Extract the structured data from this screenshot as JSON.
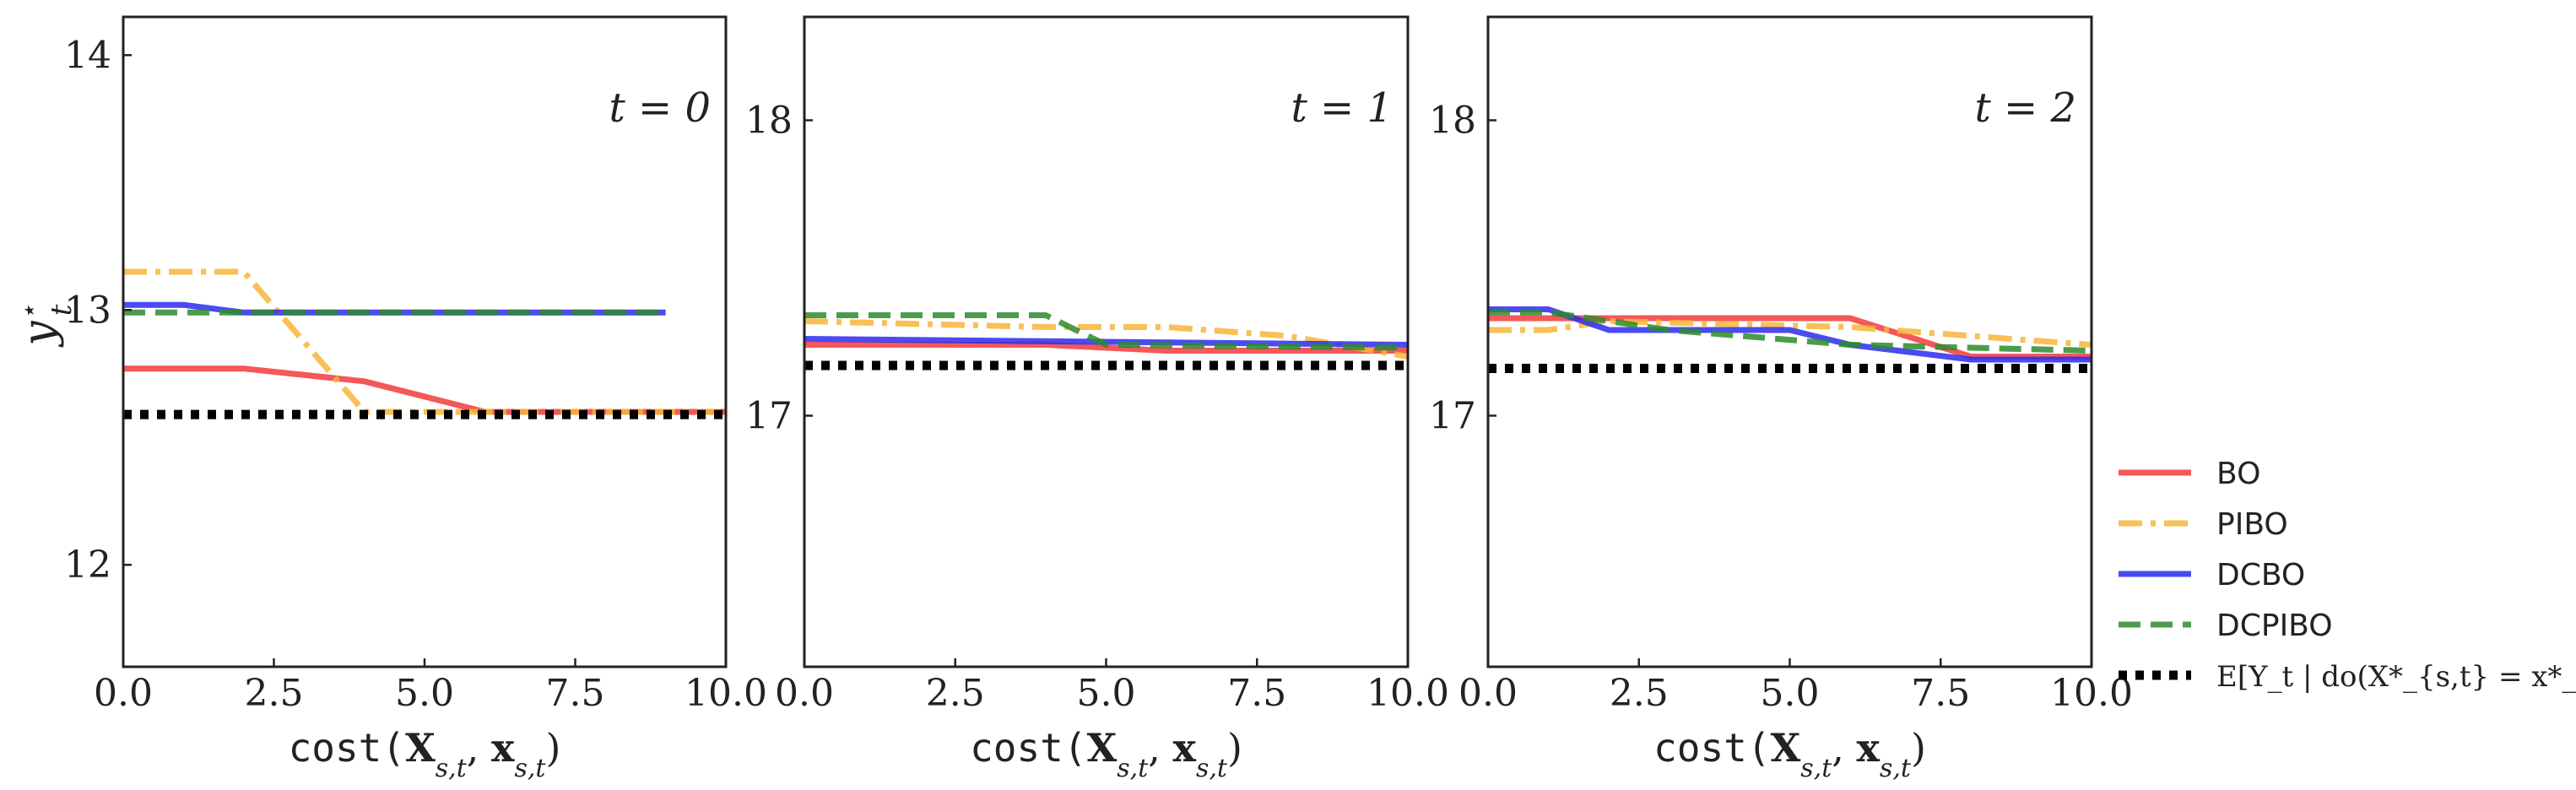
{
  "chart_data": [
    {
      "type": "line",
      "panel_label": "t = 0",
      "xlabel": "cost(X_{s,t}, x_{s,t})",
      "ylabel": "y*_t",
      "xlim": [
        0,
        10
      ],
      "ylim": [
        11.6,
        14.15
      ],
      "xticks": [
        "0.0",
        "2.5",
        "5.0",
        "7.5",
        "10.0"
      ],
      "yticks": [
        12,
        13,
        14
      ],
      "series": [
        {
          "name": "BO",
          "color": "#f23b3b",
          "dash": "solid",
          "x": [
            0,
            2,
            4,
            6,
            10
          ],
          "y": [
            12.77,
            12.77,
            12.72,
            12.6,
            12.6
          ]
        },
        {
          "name": "PIBO",
          "color": "#f7b538",
          "dash": "dashdot",
          "x": [
            0,
            2,
            4,
            10
          ],
          "y": [
            13.15,
            13.15,
            12.6,
            12.6
          ]
        },
        {
          "name": "DCBO",
          "color": "#2b2bef",
          "dash": "solid",
          "x": [
            0,
            1,
            2,
            9
          ],
          "y": [
            13.02,
            13.02,
            12.99,
            12.99
          ]
        },
        {
          "name": "DCPIBO",
          "color": "#2e8b2e",
          "dash": "dashed",
          "x": [
            0,
            2,
            9
          ],
          "y": [
            12.99,
            12.99,
            12.99
          ]
        },
        {
          "name": "E[Y_t | do(X*_{s,t} = x*_{s,t})]",
          "color": "#000000",
          "dash": "dotted",
          "x": [
            0,
            10
          ],
          "y": [
            12.59,
            12.59
          ]
        }
      ]
    },
    {
      "type": "line",
      "panel_label": "t = 1",
      "xlabel": "cost(X_{s,t}, x_{s,t})",
      "xlim": [
        0,
        10
      ],
      "ylim": [
        16.15,
        18.35
      ],
      "xticks": [
        "0.0",
        "2.5",
        "5.0",
        "7.5",
        "10.0"
      ],
      "yticks": [
        17,
        18
      ],
      "series": [
        {
          "name": "BO",
          "color": "#f23b3b",
          "dash": "solid",
          "x": [
            0,
            4,
            6,
            10
          ],
          "y": [
            17.24,
            17.24,
            17.22,
            17.22
          ]
        },
        {
          "name": "PIBO",
          "color": "#f7b538",
          "dash": "dashdot",
          "x": [
            0,
            4,
            6,
            8,
            10
          ],
          "y": [
            17.32,
            17.3,
            17.3,
            17.27,
            17.2
          ]
        },
        {
          "name": "DCBO",
          "color": "#2b2bef",
          "dash": "solid",
          "x": [
            0,
            10
          ],
          "y": [
            17.26,
            17.24
          ]
        },
        {
          "name": "DCPIBO",
          "color": "#2e8b2e",
          "dash": "dashed",
          "x": [
            0,
            4,
            5,
            10
          ],
          "y": [
            17.34,
            17.34,
            17.24,
            17.23
          ]
        },
        {
          "name": "E[Y_t | do(X*_{s,t} = x*_{s,t})]",
          "color": "#000000",
          "dash": "dotted",
          "x": [
            0,
            10
          ],
          "y": [
            17.17,
            17.17
          ]
        }
      ]
    },
    {
      "type": "line",
      "panel_label": "t = 2",
      "xlabel": "cost(X_{s,t}, x_{s,t})",
      "xlim": [
        0,
        10
      ],
      "ylim": [
        16.15,
        18.35
      ],
      "xticks": [
        "0.0",
        "2.5",
        "5.0",
        "7.5",
        "10.0"
      ],
      "yticks": [
        17,
        18
      ],
      "series": [
        {
          "name": "BO",
          "color": "#f23b3b",
          "dash": "solid",
          "x": [
            0,
            6,
            8,
            10
          ],
          "y": [
            17.33,
            17.33,
            17.2,
            17.2
          ]
        },
        {
          "name": "PIBO",
          "color": "#f7b538",
          "dash": "dashdot",
          "x": [
            0,
            1,
            2,
            6,
            10
          ],
          "y": [
            17.29,
            17.29,
            17.32,
            17.3,
            17.24
          ]
        },
        {
          "name": "DCBO",
          "color": "#2b2bef",
          "dash": "solid",
          "x": [
            0,
            1,
            2,
            5,
            6,
            8,
            10
          ],
          "y": [
            17.36,
            17.36,
            17.29,
            17.29,
            17.24,
            17.19,
            17.19
          ]
        },
        {
          "name": "DCPIBO",
          "color": "#2e8b2e",
          "dash": "dashed",
          "x": [
            0,
            1,
            3,
            6,
            10
          ],
          "y": [
            17.35,
            17.35,
            17.29,
            17.24,
            17.22
          ]
        },
        {
          "name": "E[Y_t | do(X*_{s,t} = x*_{s,t})]",
          "color": "#000000",
          "dash": "dotted",
          "x": [
            0,
            10
          ],
          "y": [
            17.16,
            17.16
          ]
        }
      ]
    }
  ],
  "legend": {
    "placement": "right",
    "entries": [
      {
        "name": "BO",
        "color": "#f23b3b",
        "dash": "solid"
      },
      {
        "name": "PIBO",
        "color": "#f7b538",
        "dash": "dashdot"
      },
      {
        "name": "DCBO",
        "color": "#2b2bef",
        "dash": "solid"
      },
      {
        "name": "DCPIBO",
        "color": "#2e8b2e",
        "dash": "dashed"
      },
      {
        "name": "E[Y_t | do(X*_{s,t} = x*_{s,t})]",
        "color": "#000000",
        "dash": "dotted"
      }
    ]
  }
}
